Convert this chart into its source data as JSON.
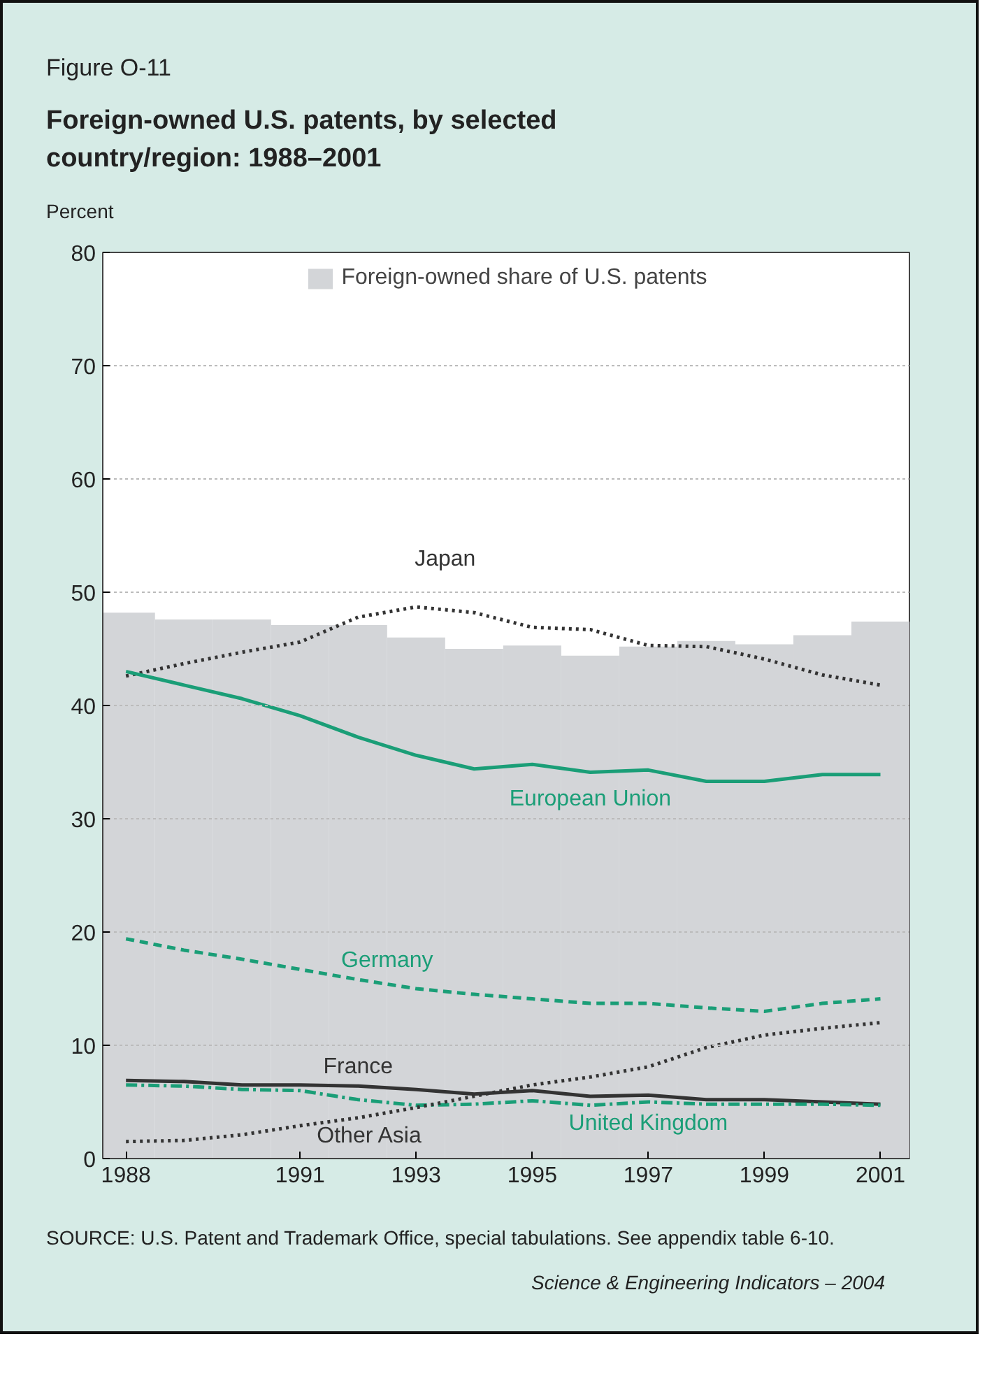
{
  "chart_data": {
    "type": "line",
    "title": "Foreign-owned U.S. patents, by selected country/region: 1988–2001",
    "ylabel": "Percent",
    "annotations": [
      "Figure O-11",
      "SOURCE: U.S. Patent and Trademark Office, special tabulations. See appendix table 6-10.",
      "Science & Engineering Indicators – 2004"
    ],
    "x": [
      1988,
      1989,
      1990,
      1991,
      1992,
      1993,
      1994,
      1995,
      1996,
      1997,
      1998,
      1999,
      2000,
      2001
    ],
    "series": [
      {
        "name": "Foreign-owned share of U.S. patents",
        "type": "bar",
        "color": "#d3d5d8",
        "values": [
          48.2,
          47.6,
          47.6,
          47.1,
          47.1,
          46.0,
          45.0,
          45.3,
          44.4,
          45.2,
          45.7,
          45.4,
          46.2,
          47.4
        ]
      },
      {
        "name": "Japan",
        "color": "#333333",
        "line_style": "dotted",
        "values": [
          42.6,
          43.7,
          44.7,
          45.6,
          47.8,
          48.7,
          48.2,
          46.9,
          46.7,
          45.3,
          45.2,
          44.1,
          42.7,
          41.8
        ]
      },
      {
        "name": "European Union",
        "color": "#1a9e77",
        "line_style": "solid",
        "values": [
          43.0,
          41.8,
          40.6,
          39.1,
          37.2,
          35.6,
          34.4,
          34.8,
          34.1,
          34.3,
          33.3,
          33.3,
          33.9,
          33.9
        ]
      },
      {
        "name": "Germany",
        "color": "#1a9e77",
        "line_style": "dashed",
        "values": [
          19.4,
          18.4,
          17.6,
          16.7,
          15.8,
          15.0,
          14.5,
          14.1,
          13.7,
          13.7,
          13.3,
          13.0,
          13.7,
          14.1
        ]
      },
      {
        "name": "France",
        "color": "#333333",
        "line_style": "solid",
        "values": [
          6.9,
          6.8,
          6.5,
          6.5,
          6.4,
          6.1,
          5.7,
          6.0,
          5.5,
          5.6,
          5.2,
          5.2,
          5.0,
          4.8
        ]
      },
      {
        "name": "United Kingdom",
        "color": "#1a9e77",
        "line_style": "dashdot",
        "values": [
          6.5,
          6.4,
          6.1,
          6.0,
          5.2,
          4.7,
          4.8,
          5.1,
          4.7,
          5.0,
          4.8,
          4.8,
          4.8,
          4.7
        ]
      },
      {
        "name": "Other Asia",
        "color": "#333333",
        "line_style": "dotted",
        "values": [
          1.5,
          1.6,
          2.1,
          2.9,
          3.6,
          4.5,
          5.5,
          6.5,
          7.2,
          8.1,
          9.8,
          10.9,
          11.5,
          12.0
        ]
      }
    ],
    "xlim": [
      1987.6,
      2001.5
    ],
    "xticks": [
      1988,
      1991,
      1993,
      1995,
      1997,
      1999,
      2001
    ],
    "ylim": [
      0,
      80
    ],
    "yticks": [
      0,
      10,
      20,
      30,
      40,
      50,
      60,
      70,
      80
    ],
    "grid": "y",
    "legend": "top"
  }
}
